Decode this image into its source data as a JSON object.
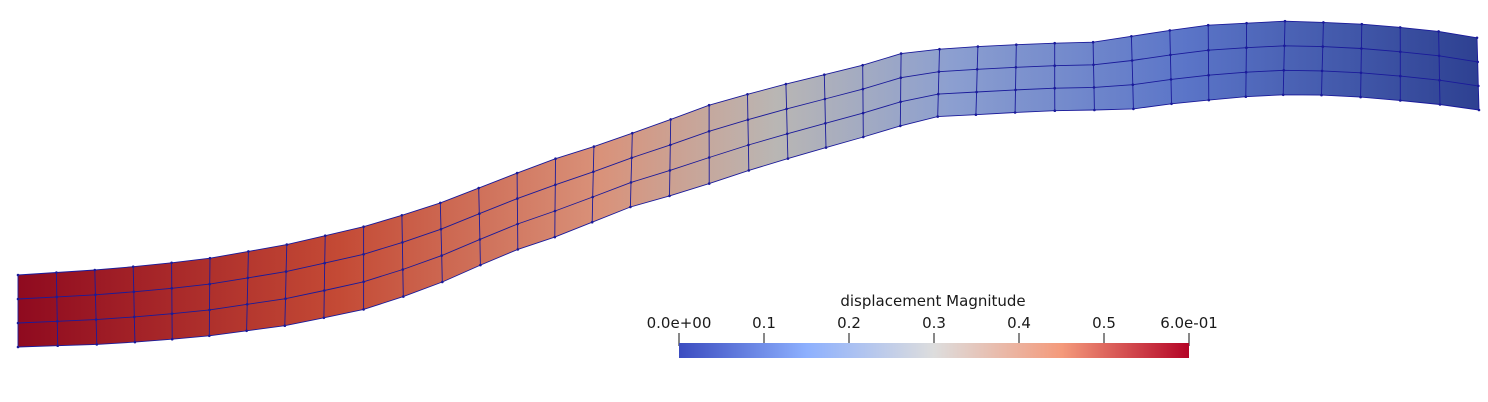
{
  "scalar_bar": {
    "title": "displacement Magnitude",
    "tick_labels": [
      "0.0e+00",
      "0.1",
      "0.2",
      "0.3",
      "0.4",
      "0.5",
      "6.0e-01"
    ],
    "range": [
      0,
      0.6
    ],
    "colormap": [
      "#3b4cc0",
      "#8db0fe",
      "#dddddd",
      "#f49a7b",
      "#b40426"
    ]
  },
  "mesh": {
    "edge_color": "#1a1a9a",
    "elements_along": 38,
    "elements_through": 3
  }
}
